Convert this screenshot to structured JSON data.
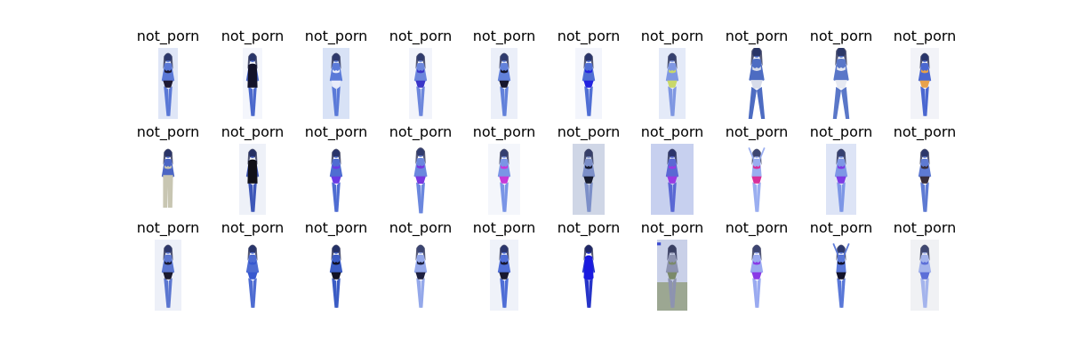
{
  "grid": {
    "rows": 3,
    "cols": 10,
    "labels": [
      [
        "not_porn",
        "not_porn",
        "not_porn",
        "not_porn",
        "not_porn",
        "not_porn",
        "not_porn",
        "not_porn",
        "not_porn",
        "not_porn"
      ],
      [
        "not_porn",
        "not_porn",
        "not_porn",
        "not_porn",
        "not_porn",
        "not_porn",
        "not_porn",
        "not_porn",
        "not_porn",
        "not_porn"
      ],
      [
        "not_porn",
        "not_porn",
        "not_porn",
        "not_porn",
        "not_porn",
        "not_porn",
        "not_porn",
        "not_porn",
        "not_porn",
        "not_porn"
      ]
    ],
    "thumbnails": [
      [
        {
          "bg": "#dfe6f7",
          "figure": "#5a78d6",
          "accent": "#1e1a33",
          "style": "standing"
        },
        {
          "bg": "#f4f6fc",
          "figure": "#4a68cc",
          "accent": "#12122a",
          "style": "dark-suit"
        },
        {
          "bg": "#d8e2f6",
          "figure": "#5b7ad8",
          "accent": "#e8ecfa",
          "style": "standing"
        },
        {
          "bg": "#f2f4fb",
          "figure": "#6c86dc",
          "accent": "#3a35c8",
          "style": "standing"
        },
        {
          "bg": "#ebeff9",
          "figure": "#6281da",
          "accent": "#16162c",
          "style": "standing"
        },
        {
          "bg": "#f3f5fc",
          "figure": "#4f6ed4",
          "accent": "#2222e0",
          "style": "standing"
        },
        {
          "bg": "#e4eaf8",
          "figure": "#7f97e2",
          "accent": "#c9d86a",
          "style": "standing"
        },
        {
          "bg": "#ffffff",
          "figure": "#4d6cc2",
          "accent": "#d7dcea",
          "style": "walking"
        },
        {
          "bg": "#ffffff",
          "figure": "#5a77c8",
          "accent": "#e6e9f2",
          "style": "walking"
        },
        {
          "bg": "#f2f3f8",
          "figure": "#4a67d0",
          "accent": "#e8a24a",
          "style": "standing"
        }
      ],
      [
        {
          "bg": "#ffffff",
          "figure": "#4c66c4",
          "accent": "#c8c6b2",
          "style": "pattern"
        },
        {
          "bg": "#eef1f8",
          "figure": "#3d57b8",
          "accent": "#101018",
          "style": "dark-suit"
        },
        {
          "bg": "#ffffff",
          "figure": "#4f6dd2",
          "accent": "#6a3ae6",
          "style": "standing"
        },
        {
          "bg": "#ffffff",
          "figure": "#6b87de",
          "accent": "#7838e0",
          "style": "standing"
        },
        {
          "bg": "#f4f6fb",
          "figure": "#7a95e6",
          "accent": "#c63ad8",
          "style": "standing"
        },
        {
          "bg": "#cfd6e6",
          "figure": "#7c8fc8",
          "accent": "#171c30",
          "style": "standing"
        },
        {
          "bg": "#c7d0ef",
          "figure": "#5a68d4",
          "accent": "#9a3ae2",
          "style": "standing"
        },
        {
          "bg": "#ffffff",
          "figure": "#9aaef0",
          "accent": "#d8309a",
          "style": "arms-up"
        },
        {
          "bg": "#dde4f6",
          "figure": "#7d96e6",
          "accent": "#7d3ae4",
          "style": "standing"
        },
        {
          "bg": "#ffffff",
          "figure": "#5e7ad2",
          "accent": "#3a2f3c",
          "style": "standing"
        }
      ],
      [
        {
          "bg": "#edf0f8",
          "figure": "#5b76d0",
          "accent": "#1b1b30",
          "style": "standing"
        },
        {
          "bg": "#ffffff",
          "figure": "#4e6cd2",
          "accent": "#3758cf",
          "style": "standing"
        },
        {
          "bg": "#ffffff",
          "figure": "#3b5cc4",
          "accent": "#121226",
          "style": "standing"
        },
        {
          "bg": "#ffffff",
          "figure": "#94a8ea",
          "accent": "#1d2040",
          "style": "standing"
        },
        {
          "bg": "#eff2f9",
          "figure": "#4f6ed6",
          "accent": "#181830",
          "style": "standing"
        },
        {
          "bg": "#ffffff",
          "figure": "#2634c8",
          "accent": "#1a1ae0",
          "style": "swimsuit"
        },
        {
          "bg": "#e9eaf0",
          "figure": "#8d93b0",
          "accent": "#7b8a6a",
          "style": "scene"
        },
        {
          "bg": "#ffffff",
          "figure": "#9aaaf0",
          "accent": "#8a3ae6",
          "style": "standing"
        },
        {
          "bg": "#ffffff",
          "figure": "#5a78d8",
          "accent": "#12122a",
          "style": "arms-up"
        },
        {
          "bg": "#f0f1f4",
          "figure": "#a4b4ec",
          "accent": "#5c6fd8",
          "style": "standing"
        }
      ]
    ]
  }
}
